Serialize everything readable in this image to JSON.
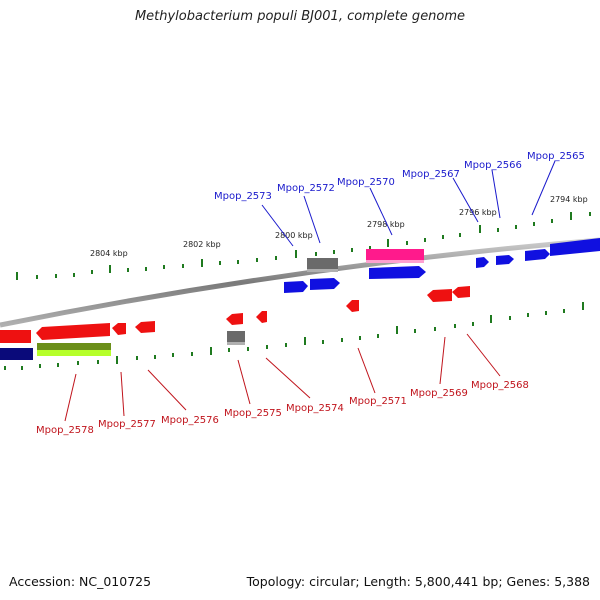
{
  "title": "Methylobacterium populi BJ001, complete genome",
  "footer": {
    "accession": "Accession: NC_010725",
    "topology": "Topology: circular; Length: 5,800,441 bp; Genes: 5,388"
  },
  "kbp_labels": [
    "2804 kbp",
    "2802 kbp",
    "2800 kbp",
    "2798 kbp",
    "2796 kbp",
    "2794 kbp"
  ],
  "top_genes": [
    "Mpop_2573",
    "Mpop_2572",
    "Mpop_2570",
    "Mpop_2567",
    "Mpop_2566",
    "Mpop_2565"
  ],
  "bottom_genes": [
    "Mpop_2578",
    "Mpop_2577",
    "Mpop_2576",
    "Mpop_2575",
    "Mpop_2574",
    "Mpop_2571",
    "Mpop_2569",
    "Mpop_2568"
  ],
  "colors": {
    "backbone": "#8a8a8a",
    "tick": "#1f7a1f",
    "forward_gene": "#1010e0",
    "reverse_gene": "#ee1111",
    "rna_gene": "#ff1a8c",
    "pseudo_gene": "#707070",
    "navy_gene": "#0a0a7a",
    "lime_gene": "#8fd61a"
  }
}
